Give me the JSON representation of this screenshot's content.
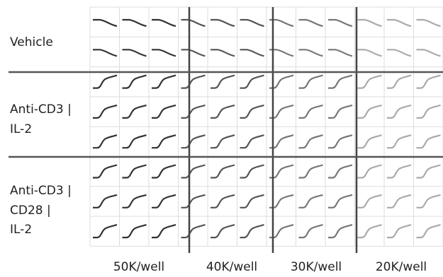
{
  "row_groups": [
    [
      "Vehicle"
    ],
    [
      "Anti-CD3 |",
      "IL-2"
    ],
    [
      "Anti-CD3 |",
      "CD28 |",
      "IL-2"
    ]
  ],
  "column_groups": [
    "50K/well",
    "40K/well",
    "30K/well",
    "20K/well"
  ]
}
